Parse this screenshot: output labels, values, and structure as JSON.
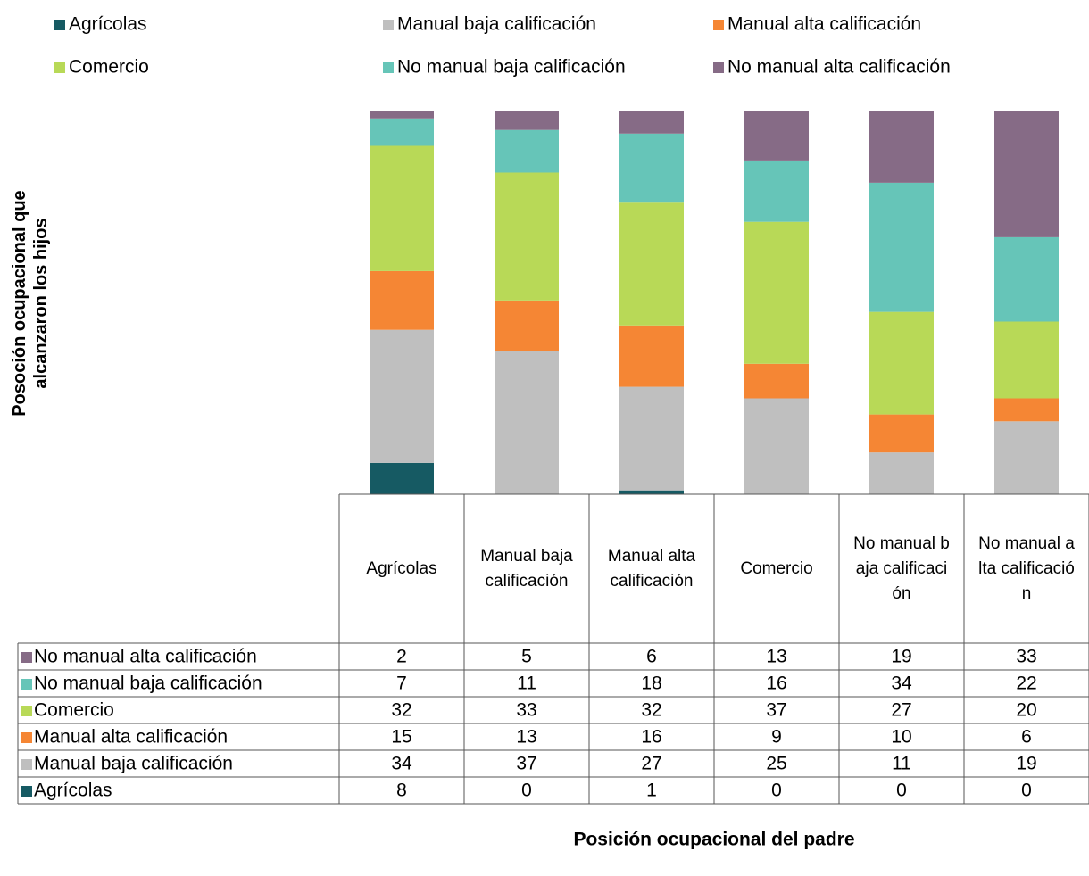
{
  "chart_data": {
    "type": "bar",
    "stacked": "percent",
    "x_label": "Posición ocupacional del padre",
    "y_label": "Posoción ocupacional que alcanzaron los hijos",
    "categories": [
      "Agrícolas",
      "Manual baja calificación",
      "Manual alta calificación",
      "Comercio",
      "No manual baja calificación",
      "No manual alta calificación"
    ],
    "series": [
      {
        "name": "Agrícolas",
        "color": "#165a63",
        "values": [
          8,
          0,
          1,
          0,
          0,
          0
        ]
      },
      {
        "name": "Manual baja calificación",
        "color": "#bfbfbf",
        "values": [
          34,
          37,
          27,
          25,
          11,
          19
        ]
      },
      {
        "name": "Manual alta calificación",
        "color": "#f58634",
        "values": [
          15,
          13,
          16,
          9,
          10,
          6
        ]
      },
      {
        "name": "Comercio",
        "color": "#b8d957",
        "values": [
          32,
          33,
          32,
          37,
          27,
          20
        ]
      },
      {
        "name": "No manual baja calificación",
        "color": "#66c5b8",
        "values": [
          7,
          11,
          18,
          16,
          34,
          22
        ]
      },
      {
        "name": "No manual alta calificación",
        "color": "#866b86",
        "values": [
          2,
          5,
          6,
          13,
          19,
          33
        ]
      }
    ]
  }
}
